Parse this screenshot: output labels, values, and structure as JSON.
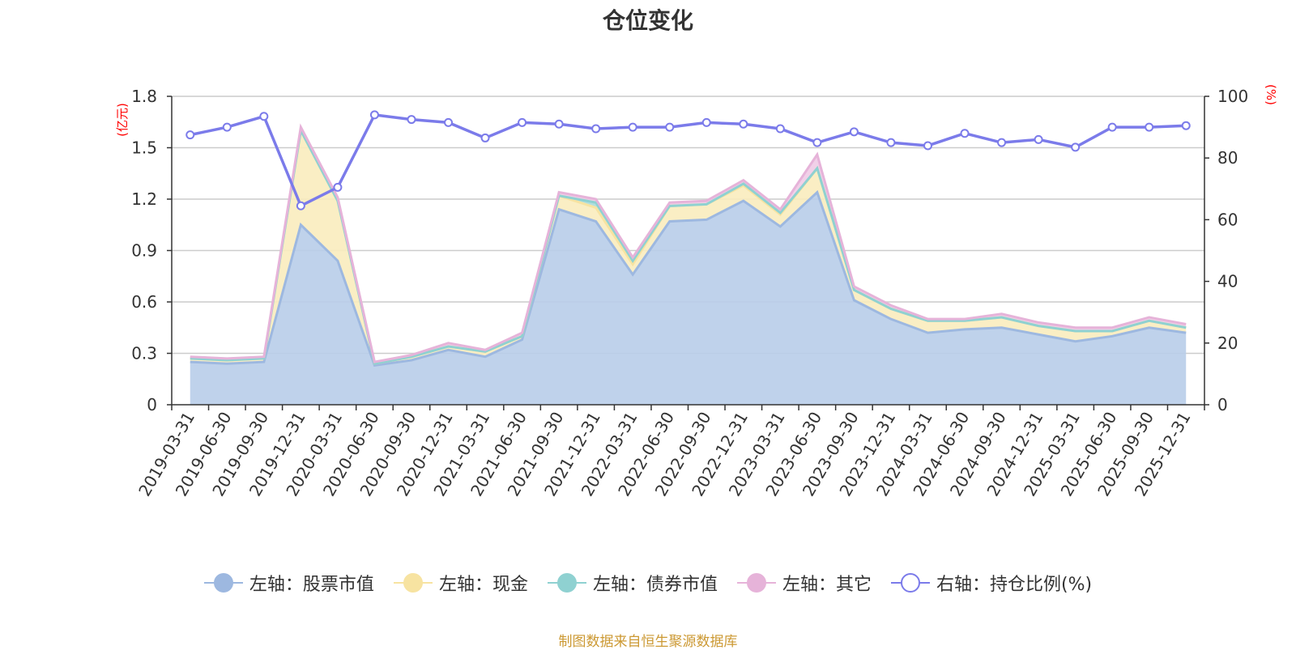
{
  "title": "仓位变化",
  "footer": "制图数据来自恒生聚源数据库",
  "chart_data": {
    "type": "area",
    "title": "仓位变化",
    "left_axis": {
      "unit": "(亿元)",
      "ylim": [
        0,
        1.8
      ],
      "ticks": [
        "0",
        "0.3",
        "0.6",
        "0.9",
        "1.2",
        "1.5",
        "1.8"
      ]
    },
    "right_axis": {
      "unit": "(%)",
      "ylim": [
        0,
        100
      ],
      "ticks": [
        "0",
        "20",
        "40",
        "60",
        "80",
        "100"
      ]
    },
    "categories": [
      "2019-03-31",
      "2019-06-30",
      "2019-09-30",
      "2019-12-31",
      "2020-03-31",
      "2020-06-30",
      "2020-09-30",
      "2020-12-31",
      "2021-03-31",
      "2021-06-30",
      "2021-09-30",
      "2021-12-31",
      "2022-03-31",
      "2022-06-30",
      "2022-09-30",
      "2022-12-31",
      "2023-03-31",
      "2023-06-30",
      "2023-09-30",
      "2023-12-31",
      "2024-03-31",
      "2024-06-30",
      "2024-09-30",
      "2024-12-31",
      "2025-03-31",
      "2025-06-30",
      "2025-09-30",
      "2025-12-31"
    ],
    "stacked": true,
    "series": [
      {
        "name": "左轴：股票市值",
        "axis": "left",
        "color": "#9db8e0",
        "fill": "#b8cde9",
        "values": [
          0.25,
          0.24,
          0.25,
          1.05,
          0.84,
          0.23,
          0.26,
          0.32,
          0.28,
          0.38,
          1.14,
          1.07,
          0.76,
          1.07,
          1.08,
          1.19,
          1.04,
          1.24,
          0.61,
          0.5,
          0.42,
          0.44,
          0.45,
          0.41,
          0.37,
          0.4,
          0.45,
          0.42
        ]
      },
      {
        "name": "左轴：现金",
        "axis": "left",
        "color": "#f7e3a1",
        "fill": "#f9ecbe",
        "values": [
          0.02,
          0.02,
          0.02,
          0.55,
          0.35,
          0.01,
          0.02,
          0.02,
          0.03,
          0.02,
          0.08,
          0.08,
          0.06,
          0.09,
          0.09,
          0.09,
          0.07,
          0.14,
          0.06,
          0.06,
          0.07,
          0.05,
          0.06,
          0.05,
          0.06,
          0.03,
          0.04,
          0.03
        ]
      },
      {
        "name": "左轴：债券市值",
        "axis": "left",
        "color": "#8fd1d1",
        "fill": "#a9dcdc",
        "values": [
          0,
          0,
          0,
          0,
          0,
          0,
          0,
          0,
          0,
          0,
          0,
          0.03,
          0.02,
          0,
          0,
          0.01,
          0.01,
          0,
          0,
          0,
          0,
          0,
          0,
          0,
          0,
          0,
          0,
          0
        ]
      },
      {
        "name": "左轴：其它",
        "axis": "left",
        "color": "#e6b3d9",
        "fill": "#efcbe6",
        "values": [
          0.01,
          0.01,
          0.01,
          0.02,
          0.02,
          0.01,
          0.01,
          0.02,
          0.01,
          0.02,
          0.02,
          0.02,
          0.02,
          0.02,
          0.02,
          0.02,
          0.02,
          0.08,
          0.02,
          0.02,
          0.01,
          0.01,
          0.02,
          0.02,
          0.02,
          0.02,
          0.02,
          0.02
        ]
      },
      {
        "name": "右轴：持仓比例(%)",
        "axis": "right",
        "type": "line",
        "color": "#7b7bea",
        "values": [
          87.5,
          90,
          93.5,
          64.5,
          70.5,
          94,
          92.5,
          91.5,
          86.5,
          91.5,
          91,
          89.5,
          90,
          90,
          91.5,
          91,
          89.5,
          85,
          88.5,
          85,
          84,
          88,
          85,
          86,
          83.5,
          90,
          90,
          90.5
        ]
      }
    ],
    "legend_position": "bottom",
    "grid": true
  }
}
